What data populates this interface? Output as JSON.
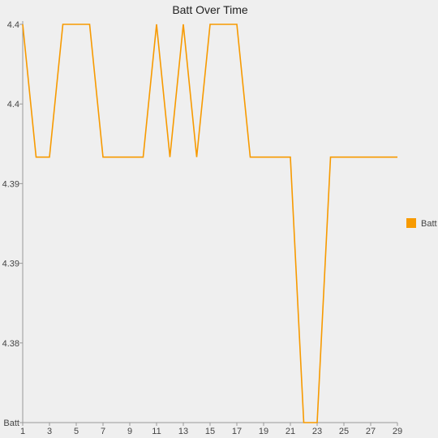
{
  "chart_data": {
    "type": "line",
    "title": "Batt Over Time",
    "xlabel": "",
    "ylabel": "",
    "x": [
      1,
      2,
      3,
      4,
      5,
      6,
      7,
      8,
      9,
      10,
      11,
      12,
      13,
      14,
      15,
      16,
      17,
      18,
      19,
      20,
      21,
      22,
      23,
      24,
      25,
      26,
      27,
      28,
      29
    ],
    "series": [
      {
        "name": "Batt",
        "color": "#f79a00",
        "values": [
          4.4,
          4.39,
          4.39,
          4.4,
          4.4,
          4.4,
          4.39,
          4.39,
          4.39,
          4.39,
          4.4,
          4.39,
          4.4,
          4.39,
          4.4,
          4.4,
          4.4,
          4.39,
          4.39,
          4.39,
          4.39,
          4.37,
          4.37,
          4.39,
          4.39,
          4.39,
          4.39,
          4.39,
          4.39
        ]
      }
    ],
    "x_tick_labels": [
      "1",
      "3",
      "5",
      "7",
      "9",
      "11",
      "13",
      "15",
      "17",
      "19",
      "21",
      "23",
      "25",
      "27",
      "29"
    ],
    "y_tick_labels": [
      "Batt",
      "4.38",
      "4.39",
      "4.39",
      "4.4",
      "4.4"
    ],
    "grid": false,
    "legend_position": "right"
  }
}
